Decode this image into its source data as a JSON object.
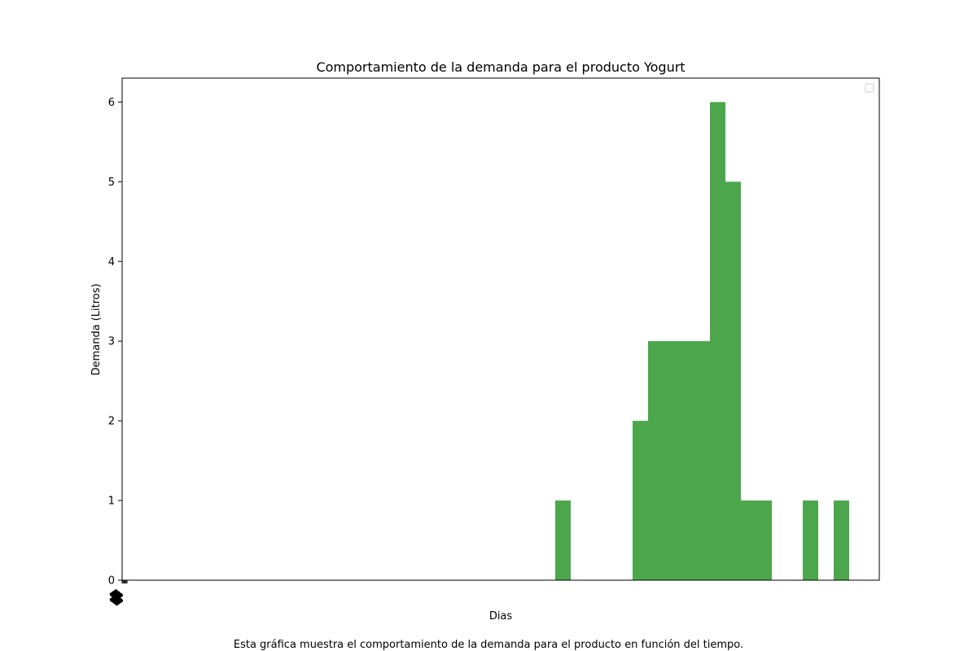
{
  "chart_data": {
    "type": "bar",
    "title": "Comportamiento de la demanda para el producto Yogurt",
    "xlabel": "Dias",
    "ylabel": "Demanda (Litros)",
    "caption": "Esta gráfica muestra el comportamiento de la demanda para el producto en función del tiempo.",
    "ylim": [
      0,
      6.3
    ],
    "yticks": [
      0,
      1,
      2,
      3,
      4,
      5,
      6
    ],
    "num_slots": 49,
    "bar_color": "#4ca64c",
    "grid": false,
    "legend": "top-right",
    "values": [
      0,
      0,
      0,
      0,
      0,
      0,
      0,
      0,
      0,
      0,
      0,
      0,
      0,
      0,
      0,
      0,
      0,
      0,
      0,
      0,
      0,
      0,
      0,
      0,
      0,
      0,
      0,
      0,
      1,
      0,
      0,
      0,
      0,
      2,
      3,
      3,
      3,
      3,
      6,
      5,
      1,
      1,
      0,
      0,
      1,
      0,
      1,
      0,
      0
    ]
  }
}
